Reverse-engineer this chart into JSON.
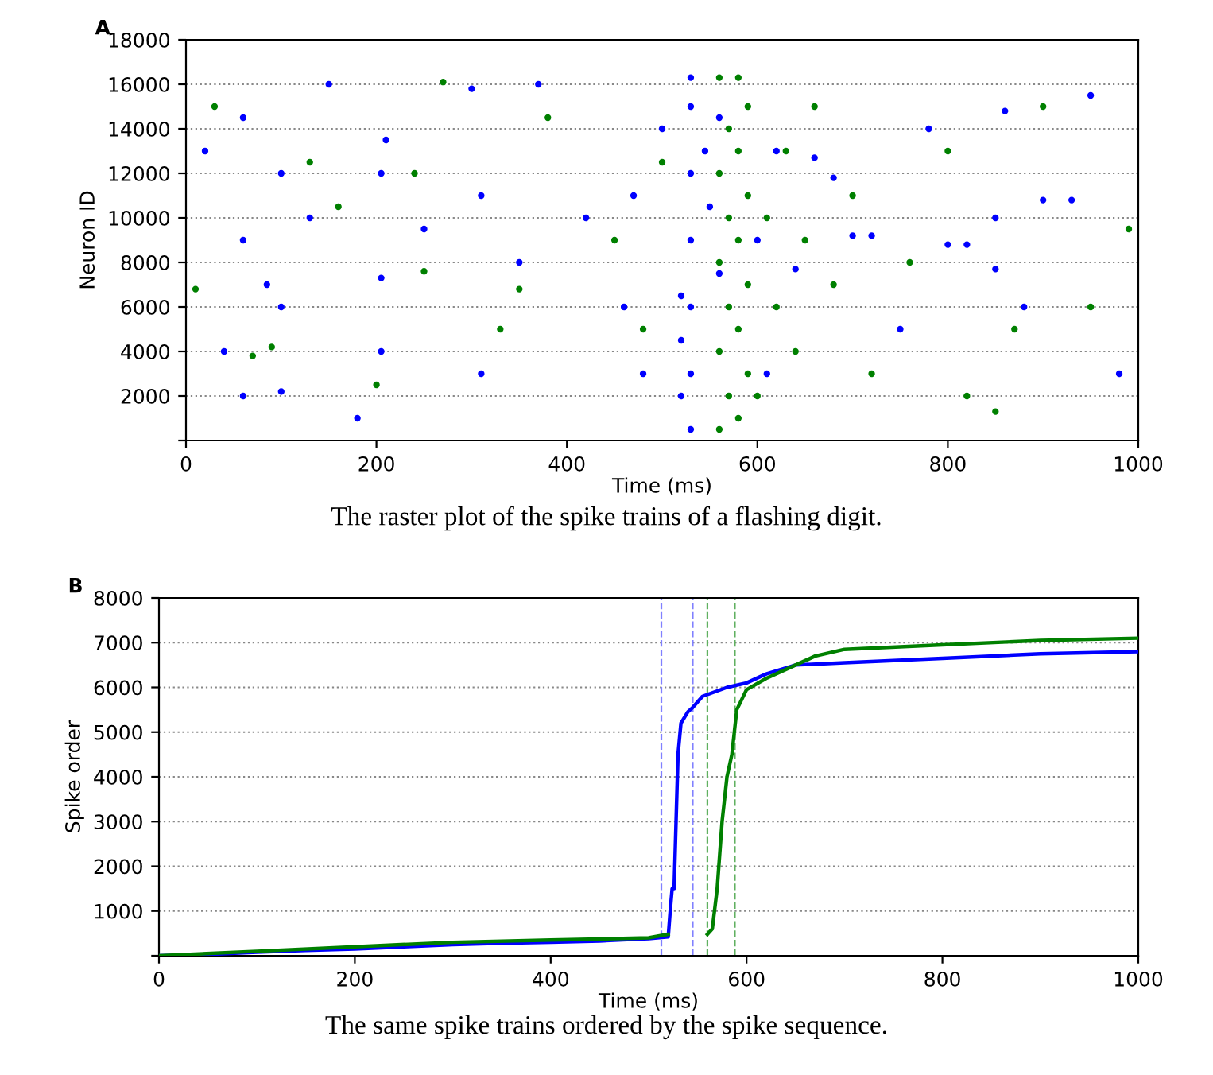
{
  "chart_data": [
    {
      "type": "scatter",
      "title": "A",
      "xlabel": "Time (ms)",
      "ylabel": "Neuron ID",
      "xlim": [
        0,
        1000
      ],
      "xticks": [
        0,
        200,
        400,
        600,
        800,
        1000
      ],
      "ylim": [
        0,
        18000
      ],
      "yticks": [
        {
          "value": 0,
          "label": null
        },
        2000,
        4000,
        6000,
        8000,
        10000,
        12000,
        14000,
        16000,
        18000
      ],
      "grid": "y",
      "marker": "circle",
      "annotations": [
        "The raster plot of the spike trains of a flashing digit."
      ],
      "series": [
        {
          "color": "#0000ff",
          "x": [
            20,
            40,
            60,
            60,
            60,
            85,
            100,
            100,
            100,
            130,
            150,
            180,
            205,
            205,
            205,
            210,
            250,
            300,
            310,
            310,
            350,
            370,
            420,
            460,
            470,
            480,
            500,
            520,
            520,
            520,
            530,
            530,
            530,
            530,
            530,
            530,
            530,
            545,
            550,
            560,
            560,
            600,
            610,
            620,
            640,
            660,
            680,
            700,
            720,
            750,
            780,
            800,
            820,
            850,
            850,
            860,
            880,
            900,
            930,
            950,
            980
          ],
          "values": [
            13000,
            4000,
            14500,
            9000,
            2000,
            7000,
            12000,
            6000,
            2200,
            10000,
            16000,
            1000,
            7300,
            12000,
            4000,
            13500,
            9500,
            15800,
            11000,
            3000,
            8000,
            16000,
            10000,
            6000,
            11000,
            3000,
            14000,
            2000,
            4500,
            6500,
            500,
            3000,
            6000,
            9000,
            12000,
            15000,
            16300,
            13000,
            10500,
            7500,
            14500,
            9000,
            3000,
            13000,
            7700,
            12700,
            11800,
            9200,
            9200,
            5000,
            14000,
            8800,
            8800,
            10000,
            7700,
            14800,
            6000,
            10800,
            10800,
            15500,
            3000
          ]
        },
        {
          "color": "#008000",
          "x": [
            10,
            30,
            70,
            90,
            130,
            160,
            200,
            240,
            250,
            270,
            330,
            350,
            380,
            450,
            480,
            500,
            560,
            560,
            560,
            560,
            560,
            570,
            570,
            570,
            570,
            580,
            580,
            580,
            580,
            580,
            590,
            590,
            590,
            590,
            600,
            610,
            620,
            630,
            640,
            650,
            660,
            680,
            700,
            720,
            760,
            800,
            820,
            850,
            870,
            900,
            950,
            990
          ],
          "values": [
            6800,
            15000,
            3800,
            4200,
            12500,
            10500,
            2500,
            12000,
            7600,
            16100,
            5000,
            6800,
            14500,
            9000,
            5000,
            12500,
            500,
            4000,
            8000,
            12000,
            16300,
            2000,
            6000,
            10000,
            14000,
            1000,
            5000,
            9000,
            13000,
            16300,
            3000,
            7000,
            11000,
            15000,
            2000,
            10000,
            6000,
            13000,
            4000,
            9000,
            15000,
            7000,
            11000,
            3000,
            8000,
            13000,
            2000,
            1300,
            5000,
            15000,
            6000,
            9500
          ]
        }
      ]
    },
    {
      "type": "line",
      "title": "B",
      "xlabel": "Time (ms)",
      "ylabel": "Spike order",
      "xlim": [
        0,
        1000
      ],
      "xticks": [
        0,
        200,
        400,
        600,
        800,
        1000
      ],
      "ylim": [
        0,
        8000
      ],
      "yticks": [
        {
          "value": 0,
          "label": null
        },
        1000,
        2000,
        3000,
        4000,
        5000,
        6000,
        7000,
        8000
      ],
      "grid": "y",
      "line_style": "solid",
      "annotations": [
        "The same spike trains ordered by the spike sequence."
      ],
      "ref_lines": [
        {
          "axis": "x",
          "value": 513,
          "color": "#8080ff",
          "line_style": "dashed"
        },
        {
          "axis": "x",
          "value": 545,
          "color": "#8080ff",
          "line_style": "dashed"
        },
        {
          "axis": "x",
          "value": 560,
          "color": "#60b060",
          "line_style": "dashed"
        },
        {
          "axis": "x",
          "value": 588,
          "color": "#60b060",
          "line_style": "dashed"
        }
      ],
      "series": [
        {
          "color": "#0000ff",
          "x": [
            0,
            50,
            100,
            150,
            200,
            250,
            300,
            350,
            400,
            450,
            500,
            520,
            522,
            524,
            526,
            528,
            530,
            533,
            540,
            545,
            555,
            580,
            600,
            620,
            650,
            700,
            800,
            900,
            1000
          ],
          "values": [
            0,
            30,
            80,
            120,
            150,
            200,
            250,
            280,
            300,
            330,
            380,
            420,
            1000,
            1500,
            1500,
            3000,
            4500,
            5200,
            5450,
            5550,
            5800,
            6000,
            6100,
            6300,
            6500,
            6550,
            6650,
            6750,
            6800
          ]
        },
        {
          "color": "#008000",
          "x": [
            0,
            100,
            200,
            300,
            400,
            500,
            520,
            540,
            560,
            565,
            570,
            575,
            580,
            585,
            590,
            600,
            620,
            650,
            670,
            700,
            800,
            900,
            1000
          ],
          "values": [
            0,
            100,
            200,
            300,
            350,
            400,
            480,
            null,
            480,
            600,
            1500,
            3000,
            4000,
            4500,
            5500,
            5950,
            6200,
            6500,
            6700,
            6850,
            6950,
            7050,
            7100
          ]
        }
      ]
    }
  ]
}
